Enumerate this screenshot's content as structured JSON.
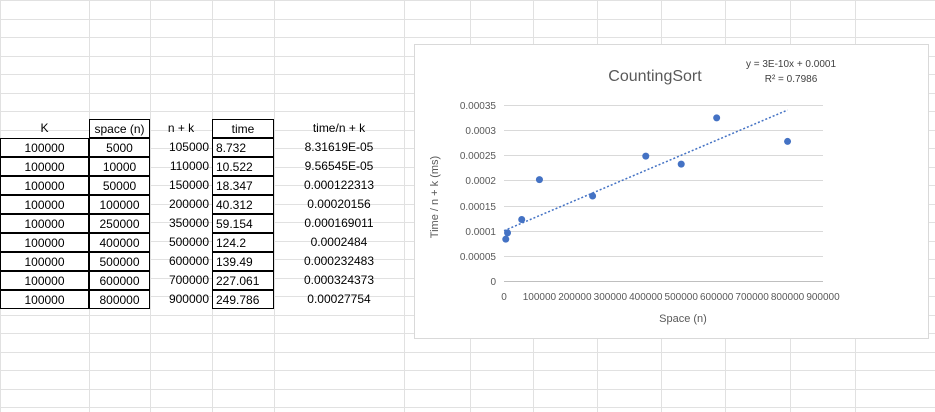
{
  "table": {
    "headers": [
      "K",
      "space (n)",
      "n + k",
      "time",
      "time/n + k"
    ],
    "rows": [
      [
        "100000",
        "5000",
        "105000",
        "8.732",
        "8.31619E-05"
      ],
      [
        "100000",
        "10000",
        "110000",
        "10.522",
        "9.56545E-05"
      ],
      [
        "100000",
        "50000",
        "150000",
        "18.347",
        "0.000122313"
      ],
      [
        "100000",
        "100000",
        "200000",
        "40.312",
        "0.00020156"
      ],
      [
        "100000",
        "250000",
        "350000",
        "59.154",
        "0.000169011"
      ],
      [
        "100000",
        "400000",
        "500000",
        "124.2",
        "0.0002484"
      ],
      [
        "100000",
        "500000",
        "600000",
        "139.49",
        "0.000232483"
      ],
      [
        "100000",
        "600000",
        "700000",
        "227.061",
        "0.000324373"
      ],
      [
        "100000",
        "800000",
        "900000",
        "249.786",
        "0.00027754"
      ]
    ]
  },
  "chart_data": {
    "type": "scatter",
    "title": "CountingSort",
    "xlabel": "Space (n)",
    "ylabel": "Time / n + k (ms)",
    "xlim": [
      0,
      900000
    ],
    "ylim": [
      0,
      0.00035
    ],
    "xticks": [
      "0",
      "100000",
      "200000",
      "300000",
      "400000",
      "500000",
      "600000",
      "700000",
      "800000",
      "900000"
    ],
    "yticks": [
      "0",
      "0.00005",
      "0.0001",
      "0.00015",
      "0.0002",
      "0.00025",
      "0.0003",
      "0.00035"
    ],
    "grid": "horizontal",
    "points": [
      {
        "x": 5000,
        "y": 8.31619e-05
      },
      {
        "x": 10000,
        "y": 9.56545e-05
      },
      {
        "x": 50000,
        "y": 0.000122313
      },
      {
        "x": 100000,
        "y": 0.00020156
      },
      {
        "x": 250000,
        "y": 0.000169011
      },
      {
        "x": 400000,
        "y": 0.0002484
      },
      {
        "x": 500000,
        "y": 0.000232483
      },
      {
        "x": 600000,
        "y": 0.000324373
      },
      {
        "x": 800000,
        "y": 0.00027754
      }
    ],
    "trendline": {
      "type": "linear",
      "slope": 3e-10,
      "intercept": 0.0001,
      "equation": "y = 3E-10x + 0.0001",
      "r2": "R² = 0.7986"
    },
    "marker_color": "#4472c4",
    "trend_color": "#4472c4"
  }
}
